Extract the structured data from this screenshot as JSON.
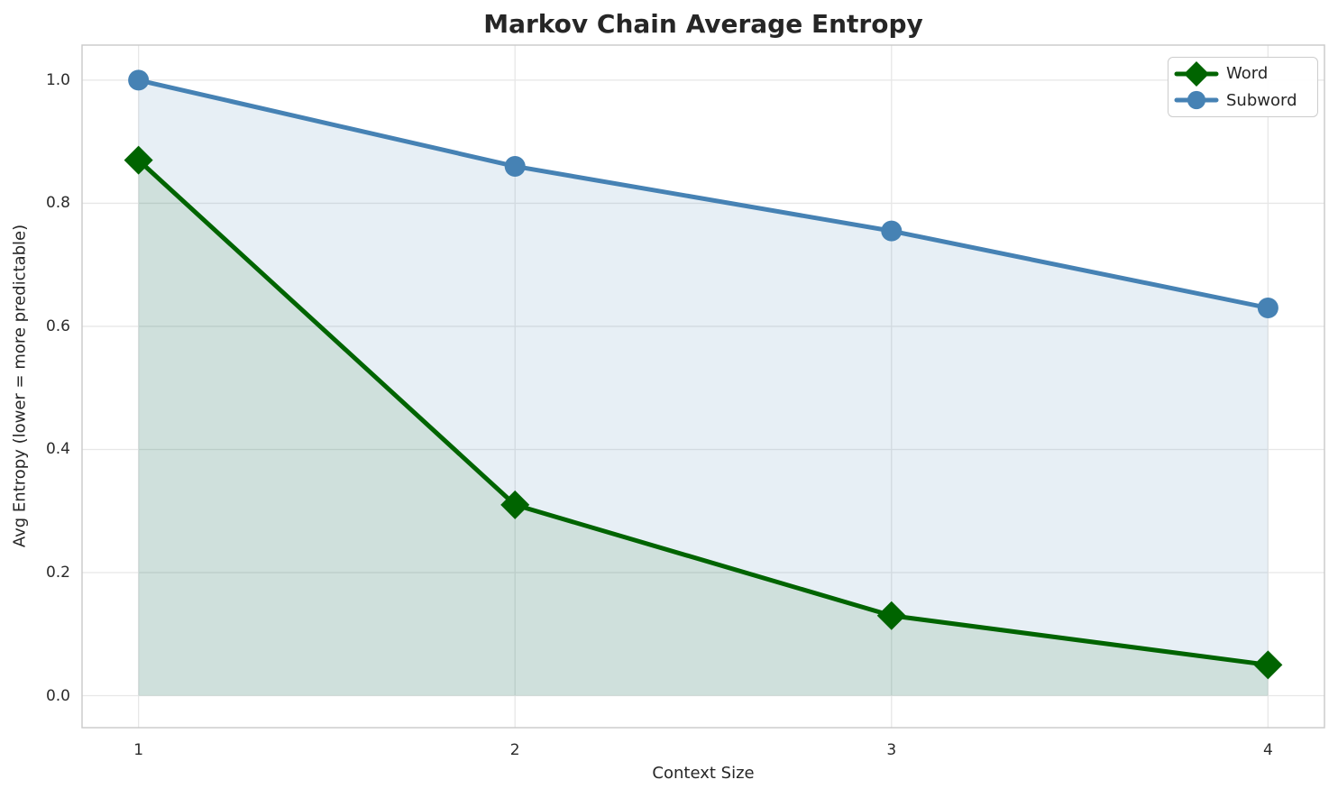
{
  "chart_data": {
    "type": "line",
    "title": "Markov Chain Average Entropy",
    "xlabel": "Context Size",
    "ylabel": "Avg Entropy (lower = more predictable)",
    "x": [
      1,
      2,
      3,
      4
    ],
    "series": [
      {
        "name": "Word",
        "values": [
          0.87,
          0.31,
          0.13,
          0.05
        ],
        "color": "#006400",
        "marker": "diamond",
        "fill_alpha": 0.1
      },
      {
        "name": "Subword",
        "values": [
          1.0,
          0.86,
          0.755,
          0.63
        ],
        "color": "#4682b4",
        "marker": "circle",
        "fill_alpha": 0.13
      }
    ],
    "area_fill": true,
    "fill_baseline": 0.0,
    "xticks": {
      "values": [
        1,
        2,
        3,
        4
      ],
      "labels": [
        "1",
        "2",
        "3",
        "4"
      ]
    },
    "yticks": {
      "values": [
        0.0,
        0.2,
        0.4,
        0.6,
        0.8,
        1.0
      ],
      "labels": [
        "0.0",
        "0.2",
        "0.4",
        "0.6",
        "0.8",
        "1.0"
      ]
    },
    "xlim": [
      0.85,
      4.15
    ],
    "ylim": [
      -0.052,
      1.057
    ],
    "grid": true,
    "legend_position": "upper right",
    "colors": {
      "grid": "#e7e7e7",
      "spine": "#c9c9c9",
      "text": "#262626",
      "background": "#ffffff"
    }
  }
}
